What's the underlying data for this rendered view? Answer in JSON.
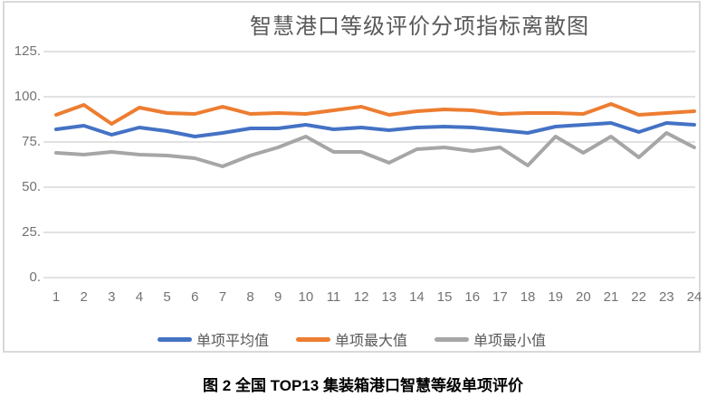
{
  "chart": {
    "title": "智慧港口等级评价分项指标离散图",
    "caption": "图 2 全国 TOP13 集装箱港口智慧等级单项评价"
  },
  "chart_data": {
    "type": "line",
    "title": "智慧港口等级评价分项指标离散图",
    "categories": [
      1,
      2,
      3,
      4,
      5,
      6,
      7,
      8,
      9,
      10,
      11,
      12,
      13,
      14,
      15,
      16,
      17,
      18,
      19,
      20,
      21,
      22,
      23,
      24
    ],
    "series": [
      {
        "name": "单项平均值",
        "color": "#4472C4",
        "values": [
          82,
          84,
          79,
          83,
          81,
          78,
          80,
          82.5,
          82.5,
          84.5,
          82,
          83,
          81.5,
          83,
          83.5,
          83,
          81.5,
          80,
          83.5,
          84.5,
          85.5,
          80.5,
          85.5,
          84.5
        ]
      },
      {
        "name": "单项最大值",
        "color": "#ED7D31",
        "values": [
          90,
          95.5,
          85,
          94,
          91,
          90.5,
          94.5,
          90.5,
          91,
          90.5,
          92.5,
          94.5,
          90,
          92,
          93,
          92.5,
          90.5,
          91,
          91,
          90.5,
          96,
          90,
          91,
          92
        ]
      },
      {
        "name": "单项最小值",
        "color": "#A6A6A6",
        "values": [
          69,
          68,
          69.5,
          68,
          67.5,
          66,
          61.5,
          67.5,
          72,
          78,
          69.5,
          69.5,
          63.5,
          71,
          72,
          70,
          72,
          62,
          78,
          69,
          78,
          66.5,
          80,
          72
        ]
      }
    ],
    "xlabel": "",
    "ylabel": "",
    "ylim": [
      0,
      125
    ],
    "ytick_labels": [
      "125.",
      "100.",
      "75.",
      "50.",
      "25.",
      "0."
    ],
    "ytick_values": [
      125,
      100,
      75,
      50,
      25,
      0
    ],
    "grid": true,
    "legend_position": "bottom",
    "gridline_color": "#D9D9D9",
    "axis_label_color": "#737373",
    "frame_border_color": "#D9D9D9"
  }
}
